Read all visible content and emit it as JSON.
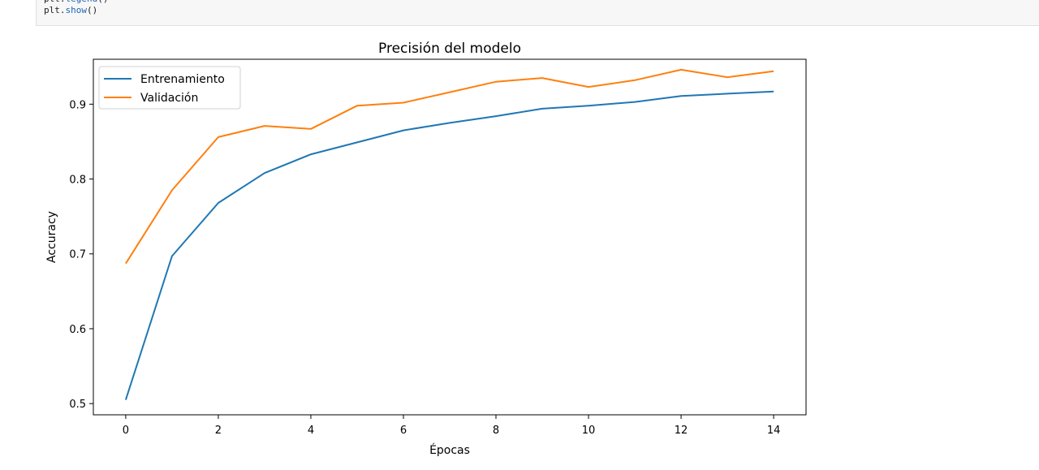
{
  "code_cell": {
    "line1": {
      "obj": "plt",
      "dot": ".",
      "fn": "legend",
      "args": "()"
    },
    "line2": {
      "obj": "plt",
      "dot": ".",
      "fn": "show",
      "args": "()"
    }
  },
  "colors": {
    "train": "#1f77b4",
    "val": "#ff7f0e",
    "code_function": "#1e66b5",
    "cell_background": "#f7f7f7"
  },
  "chart_data": {
    "type": "line",
    "title": "Precisión del modelo",
    "xlabel": "Épocas",
    "ylabel": "Accuracy",
    "x": [
      0,
      1,
      2,
      3,
      4,
      5,
      6,
      7,
      8,
      9,
      10,
      11,
      12,
      13,
      14
    ],
    "xlim": [
      -0.7,
      14.7
    ],
    "ylim": [
      0.485,
      0.96
    ],
    "xticks": [
      0,
      2,
      4,
      6,
      8,
      10,
      12,
      14
    ],
    "yticks": [
      0.5,
      0.6,
      0.7,
      0.8,
      0.9
    ],
    "ytick_labels": [
      "0.5",
      "0.6",
      "0.7",
      "0.8",
      "0.9"
    ],
    "grid": false,
    "legend_position": "upper-left",
    "series": [
      {
        "name": "Entrenamiento",
        "color": "#1f77b4",
        "values": [
          0.505,
          0.697,
          0.768,
          0.808,
          0.833,
          0.849,
          0.865,
          0.875,
          0.884,
          0.894,
          0.898,
          0.903,
          0.911,
          0.914,
          0.917
        ]
      },
      {
        "name": "Validación",
        "color": "#ff7f0e",
        "values": [
          0.687,
          0.785,
          0.856,
          0.871,
          0.867,
          0.898,
          0.902,
          0.916,
          0.93,
          0.935,
          0.923,
          0.932,
          0.946,
          0.936,
          0.944
        ]
      }
    ]
  }
}
